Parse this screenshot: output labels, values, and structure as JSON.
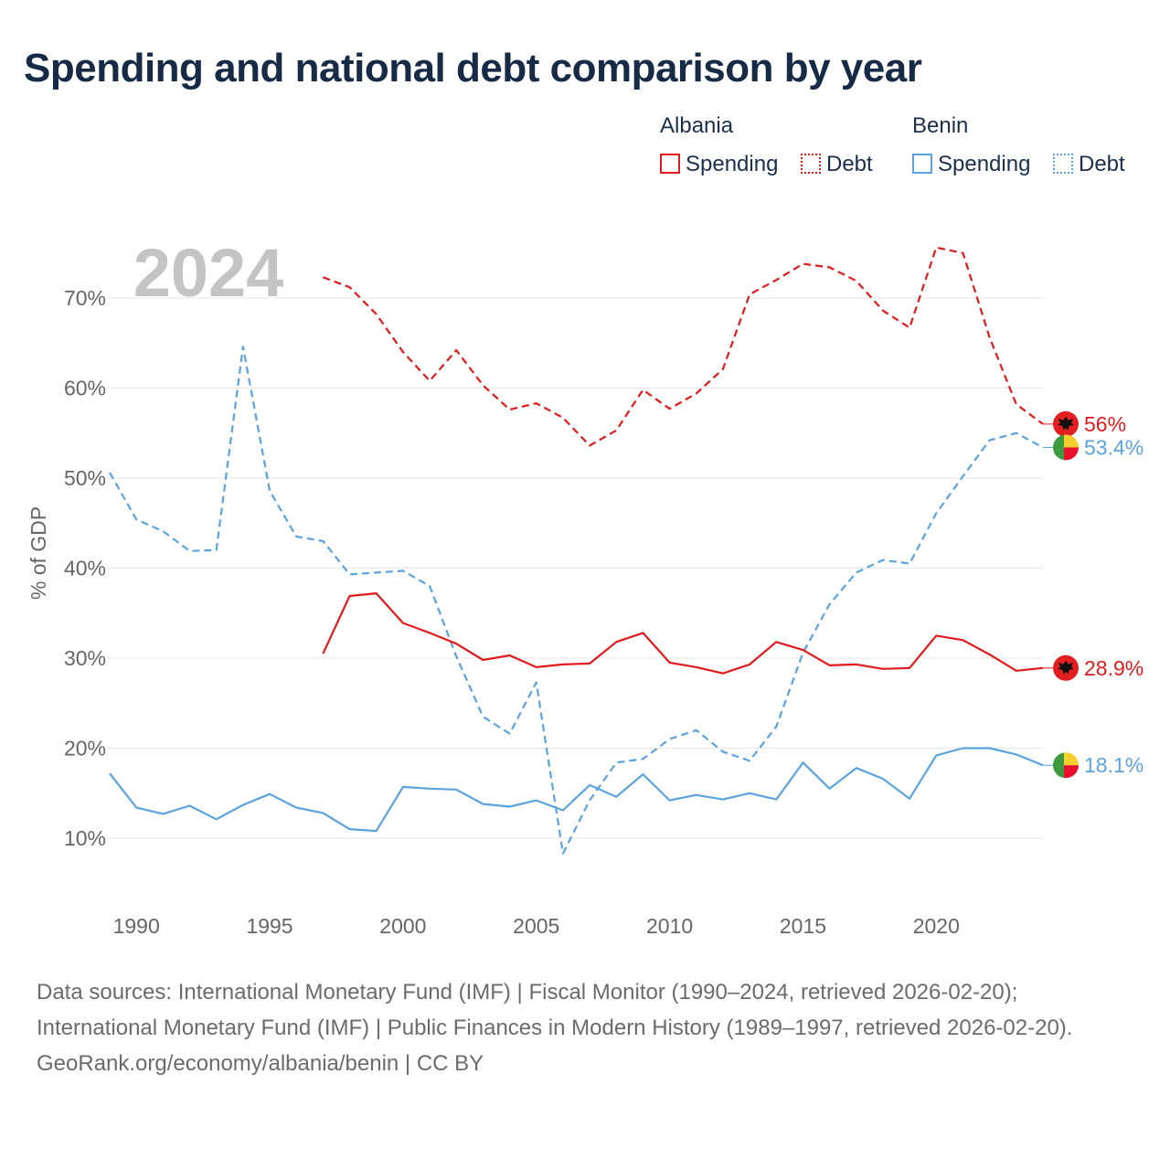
{
  "title": "Spending and national debt comparison by year",
  "legend": {
    "groups": [
      {
        "country": "Albania",
        "items": [
          {
            "label": "Spending",
            "style": "solid"
          },
          {
            "label": "Debt",
            "style": "dotted"
          }
        ],
        "color": "#e31a1c"
      },
      {
        "country": "Benin",
        "items": [
          {
            "label": "Spending",
            "style": "solid"
          },
          {
            "label": "Debt",
            "style": "dotted"
          }
        ],
        "color": "#5ba3e0"
      }
    ]
  },
  "footer": {
    "sources": "Data sources: International Monetary Fund (IMF) | Fiscal Monitor (1990–2024, retrieved 2026-02-20); International Monetary Fund (IMF) | Public Finances in Modern History (1989–1997, retrieved 2026-02-20).",
    "credit": "GeoRank.org/economy/albania/benin | CC BY"
  },
  "chart_data": {
    "type": "line",
    "title": "Spending and national debt comparison by year",
    "year_label": "2024",
    "xlabel": "",
    "ylabel": "% of GDP",
    "xlim": [
      1989,
      2024
    ],
    "ylim": [
      3,
      77
    ],
    "x_ticks": [
      1990,
      1995,
      2000,
      2005,
      2010,
      2015,
      2020
    ],
    "y_ticks": [
      10,
      20,
      30,
      40,
      50,
      60,
      70
    ],
    "y_tick_labels": [
      "10%",
      "20%",
      "30%",
      "40%",
      "50%",
      "60%",
      "70%"
    ],
    "grid": true,
    "legend_position": "top-right",
    "series": [
      {
        "name": "Albania Debt",
        "country": "Albania",
        "metric": "Debt",
        "color": "#e31a1c",
        "dash": "dashed",
        "x": [
          1997,
          1998,
          1999,
          2000,
          2001,
          2002,
          2003,
          2004,
          2005,
          2006,
          2007,
          2008,
          2009,
          2010,
          2011,
          2012,
          2013,
          2014,
          2015,
          2016,
          2017,
          2018,
          2019,
          2020,
          2021,
          2022,
          2023,
          2024
        ],
        "values": [
          72.3,
          71.2,
          68.2,
          64.0,
          60.8,
          64.2,
          60.3,
          57.6,
          58.3,
          56.7,
          53.6,
          55.3,
          59.8,
          57.7,
          59.4,
          62.1,
          70.4,
          72.0,
          73.8,
          73.4,
          71.9,
          68.6,
          66.7,
          75.6,
          75.0,
          65.6,
          58.2,
          56.0
        ],
        "end_label": "56%"
      },
      {
        "name": "Benin Debt",
        "country": "Benin",
        "metric": "Debt",
        "color": "#5ba3e0",
        "dash": "dashed",
        "x": [
          1989,
          1990,
          1991,
          1992,
          1993,
          1994,
          1995,
          1996,
          1997,
          1998,
          1999,
          2000,
          2001,
          2002,
          2003,
          2004,
          2005,
          2006,
          2007,
          2008,
          2009,
          2010,
          2011,
          2012,
          2013,
          2014,
          2015,
          2016,
          2017,
          2018,
          2019,
          2020,
          2021,
          2022,
          2023,
          2024
        ],
        "values": [
          50.6,
          45.4,
          44.1,
          41.9,
          42.0,
          64.6,
          48.6,
          43.5,
          43.0,
          39.3,
          39.5,
          39.7,
          38.0,
          30.2,
          23.5,
          21.6,
          27.3,
          8.3,
          14.2,
          18.4,
          18.8,
          21.0,
          22.0,
          19.6,
          18.6,
          22.4,
          30.6,
          36.0,
          39.5,
          40.9,
          40.5,
          46.1,
          50.2,
          54.2,
          55.0,
          53.4
        ],
        "end_label": "53.4%"
      },
      {
        "name": "Albania Spending",
        "country": "Albania",
        "metric": "Spending",
        "color": "#e31a1c",
        "dash": "solid",
        "x": [
          1997,
          1998,
          1999,
          2000,
          2001,
          2002,
          2003,
          2004,
          2005,
          2006,
          2007,
          2008,
          2009,
          2010,
          2011,
          2012,
          2013,
          2014,
          2015,
          2016,
          2017,
          2018,
          2019,
          2020,
          2021,
          2022,
          2023,
          2024
        ],
        "values": [
          30.5,
          36.9,
          37.2,
          33.9,
          32.8,
          31.6,
          29.8,
          30.3,
          29.0,
          29.3,
          29.4,
          31.8,
          32.8,
          29.5,
          29.0,
          28.3,
          29.3,
          31.8,
          30.9,
          29.2,
          29.3,
          28.8,
          28.9,
          32.5,
          32.0,
          30.4,
          28.6,
          28.9
        ],
        "end_label": "28.9%"
      },
      {
        "name": "Benin Spending",
        "country": "Benin",
        "metric": "Spending",
        "color": "#5ba3e0",
        "dash": "solid",
        "x": [
          1989,
          1990,
          1991,
          1992,
          1993,
          1994,
          1995,
          1996,
          1997,
          1998,
          1999,
          2000,
          2001,
          2002,
          2003,
          2004,
          2005,
          2006,
          2007,
          2008,
          2009,
          2010,
          2011,
          2012,
          2013,
          2014,
          2015,
          2016,
          2017,
          2018,
          2019,
          2020,
          2021,
          2022,
          2023,
          2024
        ],
        "values": [
          17.2,
          13.4,
          12.7,
          13.6,
          12.1,
          13.7,
          14.9,
          13.4,
          12.8,
          11.0,
          10.8,
          15.7,
          15.5,
          15.4,
          13.8,
          13.5,
          14.2,
          13.1,
          15.9,
          14.6,
          17.1,
          14.2,
          14.8,
          14.3,
          15.0,
          14.3,
          18.4,
          15.5,
          17.8,
          16.6,
          14.4,
          19.2,
          20.0,
          20.0,
          19.3,
          18.1
        ],
        "end_label": "18.1%"
      }
    ]
  }
}
